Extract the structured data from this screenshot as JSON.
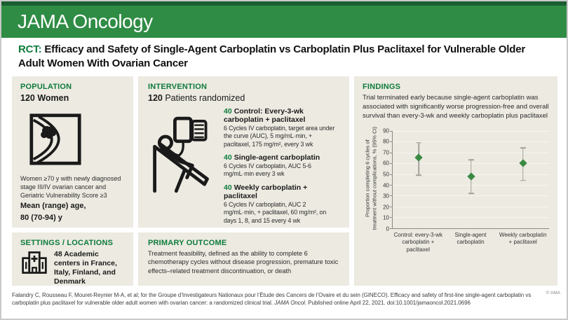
{
  "header": {
    "journal": "JAMA Oncology"
  },
  "title": {
    "tag": "RCT:",
    "text": "Efficacy and Safety of Single-Agent Carboplatin vs Carboplatin Plus Paclitaxel for Vulnerable Older Adult Women With Ovarian Cancer"
  },
  "population": {
    "heading": "POPULATION",
    "count": "120",
    "count_label": "Women",
    "description": "Women ≥70 y with newly diagnosed stage III/IV ovarian cancer and Geriatric Vulnerability Score ≥3",
    "age_label": "Mean (range) age,",
    "age_value": "80 (70-94) y"
  },
  "settings": {
    "heading": "SETTINGS / LOCATIONS",
    "text": "48 Academic centers in France, Italy, Finland, and Denmark"
  },
  "intervention": {
    "heading": "INTERVENTION",
    "count": "120",
    "count_label": "Patients randomized",
    "arms": [
      {
        "n": "40",
        "name": "Control: Every-3-wk carboplatin + paclitaxel",
        "detail": "6 Cycles IV carboplatin, target area under the curve (AUC), 5 mg/mL·min, + paclitaxel, 175 mg/m², every 3 wk"
      },
      {
        "n": "40",
        "name": "Single-agent carboplatin",
        "detail": "6 Cycles IV carboplatin, AUC 5-6 mg/mL·min every 3 wk"
      },
      {
        "n": "40",
        "name": "Weekly carboplatin + paclitaxel",
        "detail": "6 Cycles IV carboplatin, AUC 2 mg/mL·min, + paclitaxel, 60 mg/m², on days 1, 8, and 15 every 4 wk"
      }
    ]
  },
  "primary_outcome": {
    "heading": "PRIMARY OUTCOME",
    "text": "Treatment feasibility, defined as the ability to complete 6 chemotherapy cycles without disease progression, premature toxic effects–related treatment discontinuation, or death"
  },
  "findings": {
    "heading": "FINDINGS",
    "summary": "Trial terminated early because single-agent carboplatin was associated with significantly worse progression-free and overall survival than every-3-wk and weekly carboplatin plus paclitaxel"
  },
  "chart_data": {
    "type": "scatter",
    "title": "",
    "xlabel": "",
    "ylabel": "Proportion completing 6 cycles of\ntreatment without complications, % (95% CI)",
    "ylim": [
      0,
      90
    ],
    "ytick_step": 10,
    "grid": true,
    "legend": "none",
    "categories": [
      "Control: every-3-wk\ncarboplatin + paclitaxel",
      "Single-agent\ncarboplatin",
      "Weekly carboplatin\n+ paclitaxel"
    ],
    "series": [
      {
        "name": "Proportion completing 6 cycles without complications, % (95% CI)",
        "values": [
          65,
          48,
          60
        ],
        "ci_low": [
          49,
          32,
          44
        ],
        "ci_high": [
          79,
          63,
          74
        ]
      }
    ],
    "marker_color": "#3a8a43",
    "errorbar_color": "#a3a29a"
  },
  "footer": {
    "citation_1": "Falandry C, Rousseau F, Mouret-Reynier M-A, et al; for the Groupe d’Investigateurs Nationaux pour l’Étude des Cancers de l’Ovaire et du sein (GINECO). Efficacy and safety of first-line single-agent carboplatin vs carboplatin plus paclitaxel for vulnerable older adult women with ovarian cancer: a randomized clinical trial. ",
    "journal_italic": "JAMA Oncol",
    "citation_2": ". Published online April 22, 2021. doi:10.1001/jamaoncol.2021.0696",
    "copyright": "© AMA"
  },
  "colors": {
    "header_band": "#2f8c45",
    "header_strip": "#1a5e31",
    "accent_green": "#0e7b3c",
    "panel_background": "#eceae1",
    "marker_green": "#3a8a43",
    "errorbar_gray": "#a3a29a"
  }
}
